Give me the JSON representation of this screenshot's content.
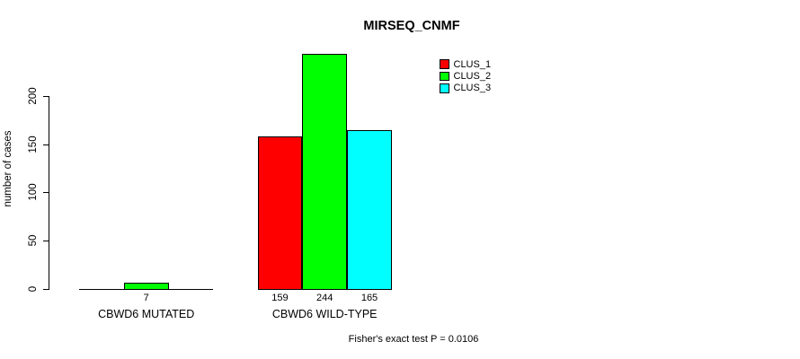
{
  "chart_data": {
    "type": "bar",
    "title": "MIRSEQ_CNMF",
    "xlabel": "",
    "ylabel": "number of cases",
    "categories": [
      "CBWD6 MUTATED",
      "CBWD6 WILD-TYPE"
    ],
    "series": [
      {
        "name": "CLUS_1",
        "color": "#FF0000",
        "values": [
          0,
          159
        ]
      },
      {
        "name": "CLUS_2",
        "color": "#00FF00",
        "values": [
          7,
          244
        ]
      },
      {
        "name": "CLUS_3",
        "color": "#00FFFF",
        "values": [
          0,
          165
        ]
      }
    ],
    "value_labels": [
      [
        "",
        "7",
        ""
      ],
      [
        "159",
        "244",
        "165"
      ]
    ],
    "y_ticks": [
      0,
      50,
      100,
      150,
      200
    ],
    "ylim": [
      0,
      200
    ],
    "grid": false,
    "legend_position": "top-right",
    "bar_border_color": "#000000",
    "annotation": "Fisher's exact test P = 0.0106"
  }
}
